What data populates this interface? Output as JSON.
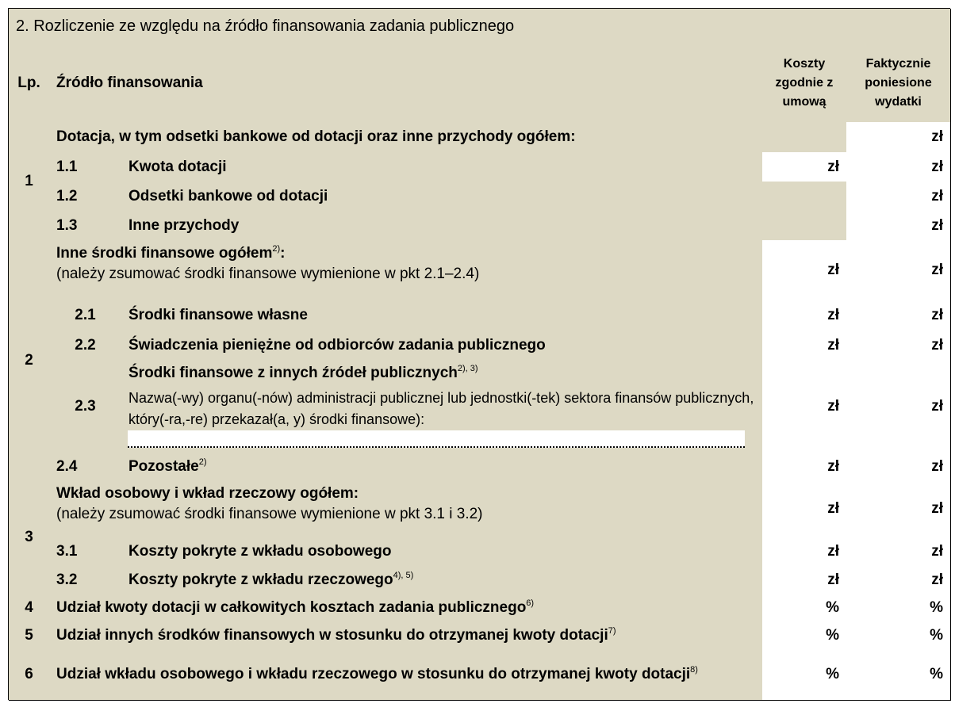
{
  "section_title": "2. Rozliczenie ze względu na źródło finansowania zadania publicznego",
  "header": {
    "lp": "Lp.",
    "source": "Źródło finansowania",
    "planned": "Koszty zgodnie z umową",
    "actual": "Faktycznie poniesione wydatki"
  },
  "groups": [
    {
      "lp": "1",
      "label": "Dotacja, w tym odsetki bankowe od dotacji oraz inne przychody ogółem:",
      "actual": "zł",
      "items": [
        {
          "lp": "1.1",
          "label": "Kwota dotacji",
          "planned": "zł",
          "actual": "zł"
        },
        {
          "lp": "1.2",
          "label": "Odsetki bankowe od dotacji",
          "actual": "zł"
        },
        {
          "lp": "1.3",
          "label": "Inne przychody",
          "actual": "zł"
        }
      ]
    },
    {
      "lp": "2",
      "label": "Inne środki finansowe ogółem",
      "sup": "2)",
      "label_after": ":",
      "note": "(należy zsumować środki finansowe wymienione w pkt 2.1–2.4)",
      "planned": "zł",
      "actual": "zł",
      "items": [
        {
          "lp": "2.1",
          "label": "Środki finansowe własne",
          "planned": "zł",
          "actual": "zł"
        },
        {
          "lp": "2.2",
          "label": "Świadczenia pieniężne od odbiorców zadania publicznego",
          "planned": "zł",
          "actual": "zł"
        },
        {
          "lp": "2.3",
          "label": "Środki finansowe z innych źródeł publicznych",
          "sup": "2), 3)",
          "note": "Nazwa(-wy) organu(-nów) administracji publicznej lub jednostki(-tek) sektora finansów publicznych, który(-ra,-re) przekazał(a, y) środki finansowe):",
          "planned": "zł",
          "actual": "zł"
        },
        {
          "lp": "2.4",
          "label": "Pozostałe",
          "sup": "2)",
          "planned": "zł",
          "actual": "zł"
        }
      ]
    },
    {
      "lp": "3",
      "label": "Wkład osobowy i wkład rzeczowy ogółem:",
      "note": "(należy zsumować środki finansowe wymienione w pkt 3.1 i 3.2)",
      "planned": "zł",
      "actual": "zł",
      "items": [
        {
          "lp": "3.1",
          "label": "Koszty pokryte z wkładu osobowego",
          "planned": "zł",
          "actual": "zł"
        },
        {
          "lp": "3.2",
          "label": "Koszty pokryte z wkładu rzeczowego",
          "sup": "4), 5)",
          "planned": "zł",
          "actual": "zł"
        }
      ]
    },
    {
      "lp": "4",
      "label": "Udział kwoty dotacji w całkowitych kosztach zadania publicznego",
      "sup": "6)",
      "planned": "%",
      "actual": "%",
      "items": []
    },
    {
      "lp": "5",
      "label": "Udział innych środków finansowych w stosunku do otrzymanej kwoty dotacji",
      "sup": "7)",
      "planned": "%",
      "actual": "%",
      "items": []
    },
    {
      "lp": "6",
      "label": "Udział wkładu osobowego i wkładu rzeczowego w stosunku do otrzymanej kwoty dotacji",
      "sup": "8)",
      "planned": "%",
      "actual": "%",
      "items": []
    }
  ]
}
